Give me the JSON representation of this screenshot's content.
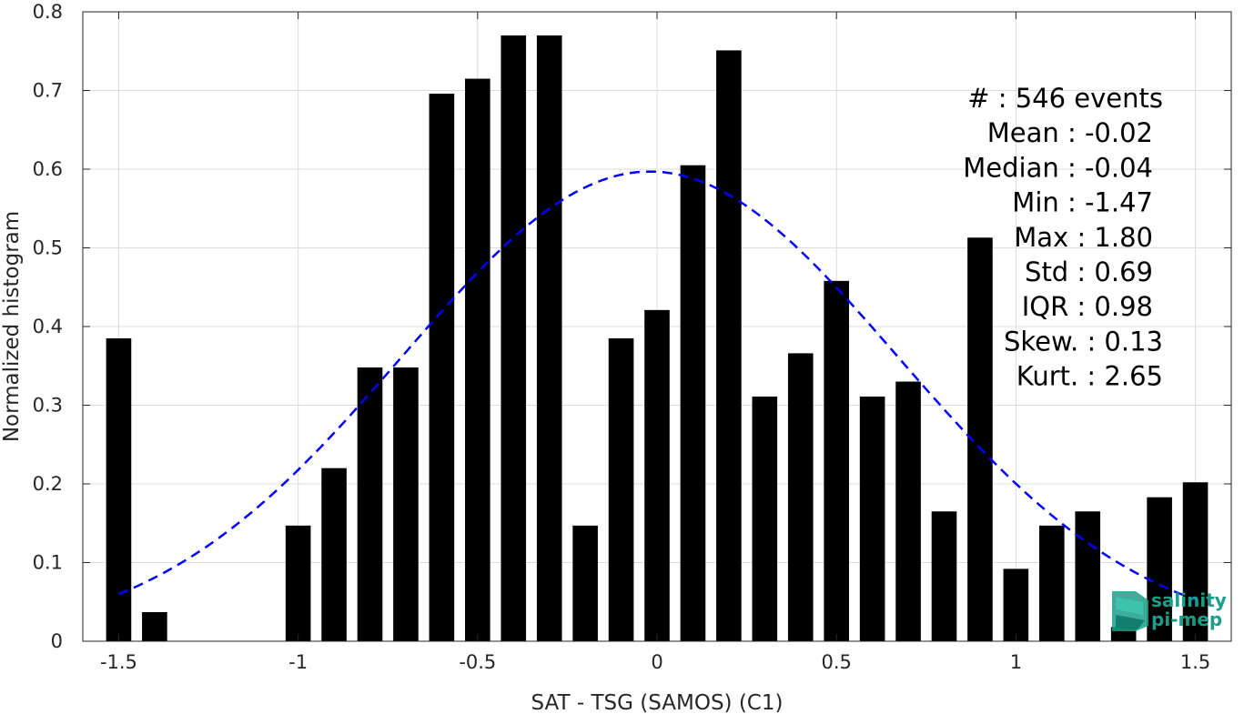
{
  "chart_data": {
    "type": "bar",
    "xlabel": "SAT - TSG (SAMOS) (C1)",
    "ylabel": "Normalized histogram",
    "xlim": [
      -1.6,
      1.6
    ],
    "ylim": [
      0,
      0.8
    ],
    "xticks": [
      -1.5,
      -1,
      -0.5,
      0,
      0.5,
      1,
      1.5
    ],
    "xtick_labels": [
      "-1.5",
      "-1",
      "-0.5",
      "0",
      "0.5",
      "1",
      "1.5"
    ],
    "yticks": [
      0,
      0.1,
      0.2,
      0.3,
      0.4,
      0.5,
      0.6,
      0.7,
      0.8
    ],
    "ytick_labels": [
      "0",
      "0.1",
      "0.2",
      "0.3",
      "0.4",
      "0.5",
      "0.6",
      "0.7",
      "0.8"
    ],
    "grid": true,
    "bar_width": 0.07,
    "bar_color": "#000000",
    "bars": [
      {
        "x": -1.5,
        "y": 0.385
      },
      {
        "x": -1.4,
        "y": 0.037
      },
      {
        "x": -1.3,
        "y": 0
      },
      {
        "x": -1.2,
        "y": 0
      },
      {
        "x": -1.1,
        "y": 0
      },
      {
        "x": -1.0,
        "y": 0.147
      },
      {
        "x": -0.9,
        "y": 0.22
      },
      {
        "x": -0.8,
        "y": 0.348
      },
      {
        "x": -0.7,
        "y": 0.348
      },
      {
        "x": -0.6,
        "y": 0.696
      },
      {
        "x": -0.5,
        "y": 0.715
      },
      {
        "x": -0.4,
        "y": 0.77
      },
      {
        "x": -0.3,
        "y": 0.77
      },
      {
        "x": -0.2,
        "y": 0.147
      },
      {
        "x": -0.1,
        "y": 0.385
      },
      {
        "x": 0.0,
        "y": 0.421
      },
      {
        "x": 0.1,
        "y": 0.605
      },
      {
        "x": 0.2,
        "y": 0.751
      },
      {
        "x": 0.3,
        "y": 0.311
      },
      {
        "x": 0.4,
        "y": 0.366
      },
      {
        "x": 0.5,
        "y": 0.458
      },
      {
        "x": 0.6,
        "y": 0.311
      },
      {
        "x": 0.7,
        "y": 0.33
      },
      {
        "x": 0.8,
        "y": 0.165
      },
      {
        "x": 0.9,
        "y": 0.513
      },
      {
        "x": 1.0,
        "y": 0.092
      },
      {
        "x": 1.1,
        "y": 0.147
      },
      {
        "x": 1.2,
        "y": 0.165
      },
      {
        "x": 1.3,
        "y": 0.018
      },
      {
        "x": 1.4,
        "y": 0.183
      },
      {
        "x": 1.5,
        "y": 0.202
      }
    ],
    "fit_curve": {
      "type": "normal",
      "mean": -0.02,
      "std": 0.69,
      "peak": 0.597,
      "x_range": [
        -1.5,
        1.5
      ],
      "color": "#0000ff",
      "style": "dashed"
    },
    "stats_lines": [
      "#  : 546 events",
      "Mean : -0.02",
      "Median : -0.04",
      "Min : -1.47",
      "Max : 1.80",
      "Std : 0.69",
      "IQR : 0.98",
      "Skew. : 0.13",
      "Kurt. : 2.65"
    ],
    "stats_placement": "top-right",
    "logo": {
      "line1": "salinity",
      "line2": "pi-mep",
      "color": "#1a9e8a"
    }
  }
}
